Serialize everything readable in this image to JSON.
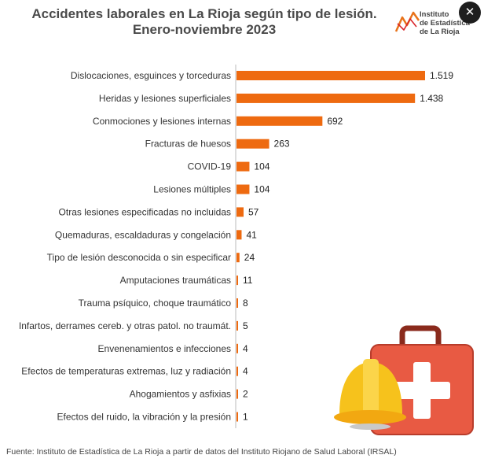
{
  "chart_data": {
    "type": "bar",
    "orientation": "horizontal",
    "title": "Accidentes laborales en La Rioja según tipo de lesión.",
    "subtitle": "Enero-noviembre 2023",
    "categories": [
      "Dislocaciones, esguinces y torceduras",
      "Heridas y lesiones superficiales",
      "Conmociones y lesiones internas",
      "Fracturas de huesos",
      "COVID-19",
      "Lesiones múltiples",
      "Otras lesiones especificadas no incluidas",
      "Quemaduras, escaldaduras y congelación",
      "Tipo de lesión desconocida o sin especificar",
      "Amputaciones traumáticas",
      "Trauma psíquico, choque traumático",
      "Infartos, derrames cereb. y otras patol. no traumát.",
      "Envenenamientos e infecciones",
      "Efectos de temperaturas extremas, luz y radiación",
      "Ahogamientos y asfixias",
      "Efectos del ruido, la vibración y la presión"
    ],
    "values": [
      1519,
      1438,
      692,
      263,
      104,
      104,
      57,
      41,
      24,
      11,
      8,
      5,
      4,
      4,
      2,
      1
    ],
    "value_labels": [
      "1.519",
      "1.438",
      "692",
      "263",
      "104",
      "104",
      "57",
      "41",
      "24",
      "11",
      "8",
      "5",
      "4",
      "4",
      "2",
      "1"
    ],
    "xlim": [
      0,
      1519
    ],
    "grid": false,
    "bar_color": "#ee6a10",
    "source": "Fuente: Instituto de Estadística de La Rioja a partir de datos del Instituto Riojano de Salud Laboral (IRSAL)"
  },
  "logo": {
    "line1": "Instituto",
    "line2": "de Estadística",
    "line3": "de La Rioja"
  },
  "close_glyph": "✕",
  "colors": {
    "bar": "#ee6a10",
    "kit_red": "#e85a43",
    "helmet_yellow": "#f6c21c"
  },
  "illustration": {
    "icons": [
      "first-aid-kit-icon",
      "hard-hat-icon"
    ]
  }
}
